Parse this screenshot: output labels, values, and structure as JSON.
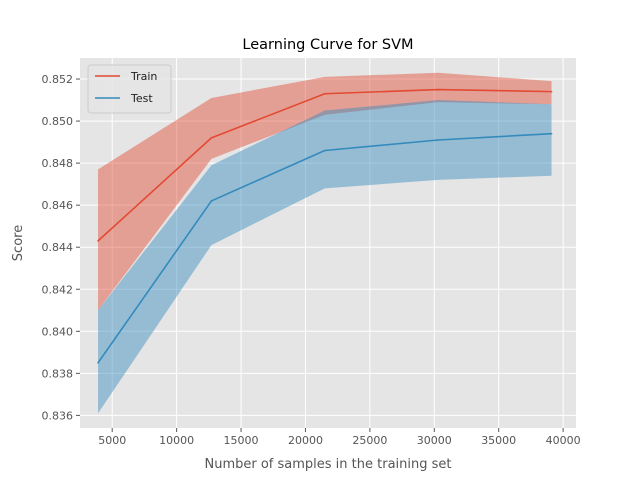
{
  "chart_data": {
    "type": "line",
    "title": "Learning Curve for SVM",
    "xlabel": "Number of samples in the training set",
    "ylabel": "Score",
    "xlim": [
      2500,
      41000
    ],
    "ylim": [
      0.8354,
      0.853
    ],
    "xticks": [
      5000,
      10000,
      15000,
      20000,
      25000,
      30000,
      35000,
      40000
    ],
    "yticks": [
      0.836,
      0.838,
      0.84,
      0.842,
      0.844,
      0.846,
      0.848,
      0.85,
      0.852
    ],
    "ytick_decimals": 3,
    "grid": true,
    "legend_position": "top-left",
    "x": [
      3900,
      12700,
      21500,
      30300,
      39100
    ],
    "series": [
      {
        "name": "Train",
        "color": "#E24A33",
        "values": [
          0.8443,
          0.8492,
          0.8513,
          0.8515,
          0.8514
        ],
        "upper": [
          0.8477,
          0.8511,
          0.8521,
          0.8523,
          0.8519
        ],
        "lower": [
          0.841,
          0.8482,
          0.8503,
          0.8509,
          0.8508
        ]
      },
      {
        "name": "Test",
        "color": "#348ABD",
        "values": [
          0.8385,
          0.8462,
          0.8486,
          0.8491,
          0.8494
        ],
        "upper": [
          0.841,
          0.8479,
          0.8505,
          0.851,
          0.8508
        ],
        "lower": [
          0.8361,
          0.8441,
          0.8468,
          0.8472,
          0.8474
        ]
      }
    ]
  }
}
